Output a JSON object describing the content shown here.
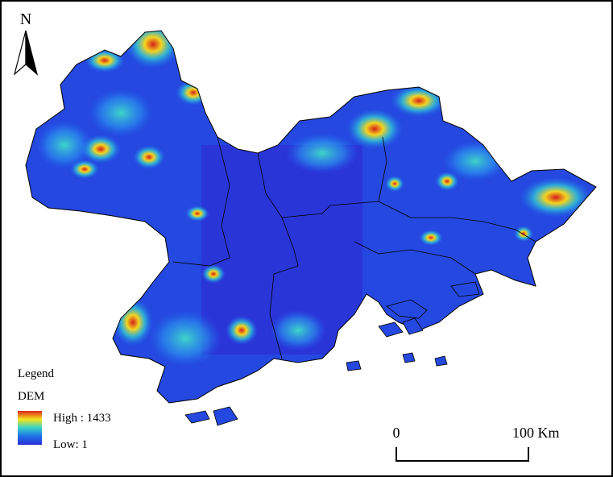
{
  "north": "N",
  "legend": {
    "title": "Legend",
    "layer": "DEM",
    "high": "High : 1433",
    "low": "Low: 1"
  },
  "scale_bar": {
    "start": "0",
    "end": "100 Km"
  }
}
